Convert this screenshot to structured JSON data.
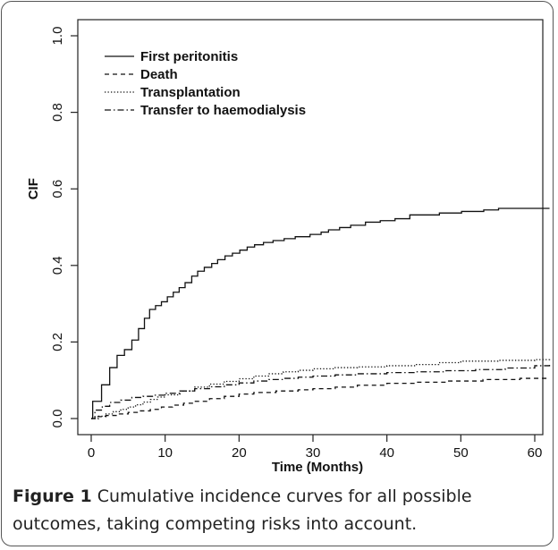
{
  "chart_data": {
    "type": "line",
    "title": "",
    "xlabel": "Time (Months)",
    "ylabel": "CIF",
    "xlim": [
      0,
      62
    ],
    "ylim": [
      0,
      1.0
    ],
    "x_ticks": [
      0,
      10,
      20,
      30,
      40,
      50,
      60
    ],
    "y_ticks": [
      0.0,
      0.2,
      0.4,
      0.6,
      0.8,
      1.0
    ],
    "x_tick_labels": [
      "0",
      "10",
      "20",
      "30",
      "40",
      "50",
      "60"
    ],
    "y_tick_labels": [
      "0.0",
      "0.2",
      "0.4",
      "0.6",
      "0.8",
      "1.0"
    ],
    "grid": false,
    "legend_position": "top-left",
    "series": [
      {
        "name": "First peritonitis",
        "line_style": "solid",
        "step": true,
        "points": [
          [
            0,
            0
          ],
          [
            0.2,
            0.045
          ],
          [
            1.3,
            0.045
          ],
          [
            1.4,
            0.088
          ],
          [
            2.4,
            0.088
          ],
          [
            2.5,
            0.133
          ],
          [
            3.4,
            0.133
          ],
          [
            3.5,
            0.165
          ],
          [
            4.4,
            0.165
          ],
          [
            4.5,
            0.18
          ],
          [
            5.4,
            0.18
          ],
          [
            5.5,
            0.205
          ],
          [
            6.3,
            0.205
          ],
          [
            6.4,
            0.235
          ],
          [
            7.1,
            0.235
          ],
          [
            7.2,
            0.262
          ],
          [
            7.8,
            0.262
          ],
          [
            7.9,
            0.285
          ],
          [
            8.6,
            0.285
          ],
          [
            8.7,
            0.295
          ],
          [
            9.4,
            0.295
          ],
          [
            9.5,
            0.305
          ],
          [
            10.2,
            0.305
          ],
          [
            10.3,
            0.318
          ],
          [
            11,
            0.318
          ],
          [
            11.1,
            0.33
          ],
          [
            11.8,
            0.33
          ],
          [
            11.9,
            0.342
          ],
          [
            12.6,
            0.342
          ],
          [
            12.7,
            0.355
          ],
          [
            13.5,
            0.355
          ],
          [
            13.6,
            0.372
          ],
          [
            14.3,
            0.372
          ],
          [
            14.4,
            0.385
          ],
          [
            15.2,
            0.385
          ],
          [
            15.3,
            0.395
          ],
          [
            16.2,
            0.395
          ],
          [
            16.3,
            0.405
          ],
          [
            17,
            0.405
          ],
          [
            17.1,
            0.415
          ],
          [
            18,
            0.415
          ],
          [
            18.1,
            0.425
          ],
          [
            19,
            0.425
          ],
          [
            19.1,
            0.432
          ],
          [
            20,
            0.432
          ],
          [
            20.1,
            0.44
          ],
          [
            21,
            0.44
          ],
          [
            21.1,
            0.448
          ],
          [
            22,
            0.448
          ],
          [
            22.1,
            0.454
          ],
          [
            23.2,
            0.454
          ],
          [
            23.3,
            0.46
          ],
          [
            24.5,
            0.46
          ],
          [
            24.6,
            0.465
          ],
          [
            26,
            0.465
          ],
          [
            26.1,
            0.47
          ],
          [
            27.5,
            0.47
          ],
          [
            27.6,
            0.475
          ],
          [
            29.5,
            0.475
          ],
          [
            29.6,
            0.481
          ],
          [
            31,
            0.481
          ],
          [
            31.1,
            0.487
          ],
          [
            32,
            0.487
          ],
          [
            32.1,
            0.493
          ],
          [
            33.5,
            0.493
          ],
          [
            33.6,
            0.499
          ],
          [
            35,
            0.499
          ],
          [
            35.1,
            0.505
          ],
          [
            37,
            0.505
          ],
          [
            37.1,
            0.513
          ],
          [
            39,
            0.513
          ],
          [
            39.1,
            0.517
          ],
          [
            41,
            0.517
          ],
          [
            41.1,
            0.522
          ],
          [
            43,
            0.522
          ],
          [
            43.1,
            0.532
          ],
          [
            47,
            0.532
          ],
          [
            47.1,
            0.537
          ],
          [
            50,
            0.537
          ],
          [
            50.1,
            0.541
          ],
          [
            53,
            0.541
          ],
          [
            53.1,
            0.545
          ],
          [
            55,
            0.545
          ],
          [
            55.1,
            0.549
          ],
          [
            62,
            0.549
          ]
        ]
      },
      {
        "name": "Death",
        "line_style": "dashed",
        "step": true,
        "points": [
          [
            0,
            0
          ],
          [
            0.5,
            0.005
          ],
          [
            2,
            0.008
          ],
          [
            3.5,
            0.012
          ],
          [
            5,
            0.016
          ],
          [
            6.5,
            0.02
          ],
          [
            8,
            0.024
          ],
          [
            9.5,
            0.03
          ],
          [
            11,
            0.035
          ],
          [
            12.5,
            0.04
          ],
          [
            14,
            0.045
          ],
          [
            16,
            0.052
          ],
          [
            18,
            0.058
          ],
          [
            20,
            0.064
          ],
          [
            22,
            0.068
          ],
          [
            25,
            0.072
          ],
          [
            28,
            0.075
          ],
          [
            30,
            0.078
          ],
          [
            33,
            0.082
          ],
          [
            36,
            0.087
          ],
          [
            40,
            0.092
          ],
          [
            44,
            0.095
          ],
          [
            48,
            0.098
          ],
          [
            53,
            0.102
          ],
          [
            58,
            0.105
          ],
          [
            62,
            0.105
          ]
        ]
      },
      {
        "name": "Transplantation",
        "line_style": "dotted",
        "step": true,
        "points": [
          [
            0,
            0
          ],
          [
            1,
            0.006
          ],
          [
            2,
            0.012
          ],
          [
            3,
            0.018
          ],
          [
            4,
            0.024
          ],
          [
            5,
            0.03
          ],
          [
            6,
            0.036
          ],
          [
            7,
            0.043
          ],
          [
            8,
            0.05
          ],
          [
            9,
            0.056
          ],
          [
            10,
            0.062
          ],
          [
            12,
            0.072
          ],
          [
            14,
            0.082
          ],
          [
            16,
            0.09
          ],
          [
            18,
            0.097
          ],
          [
            20,
            0.104
          ],
          [
            22,
            0.111
          ],
          [
            24,
            0.117
          ],
          [
            26,
            0.122
          ],
          [
            28,
            0.126
          ],
          [
            30,
            0.13
          ],
          [
            33,
            0.133
          ],
          [
            36,
            0.135
          ],
          [
            40,
            0.138
          ],
          [
            44,
            0.141
          ],
          [
            47,
            0.146
          ],
          [
            50,
            0.15
          ],
          [
            55,
            0.152
          ],
          [
            60,
            0.154
          ],
          [
            62,
            0.156
          ]
        ]
      },
      {
        "name": "Transfer to haemodialysis",
        "line_style": "dash-dot",
        "step": true,
        "points": [
          [
            0,
            0
          ],
          [
            0.5,
            0.022
          ],
          [
            1.5,
            0.032
          ],
          [
            2.5,
            0.042
          ],
          [
            4,
            0.048
          ],
          [
            5.5,
            0.055
          ],
          [
            7,
            0.058
          ],
          [
            8.5,
            0.061
          ],
          [
            10,
            0.066
          ],
          [
            12,
            0.072
          ],
          [
            14,
            0.078
          ],
          [
            16,
            0.083
          ],
          [
            18,
            0.088
          ],
          [
            20,
            0.093
          ],
          [
            22,
            0.098
          ],
          [
            24,
            0.102
          ],
          [
            26,
            0.105
          ],
          [
            28,
            0.108
          ],
          [
            30,
            0.111
          ],
          [
            33,
            0.114
          ],
          [
            36,
            0.117
          ],
          [
            40,
            0.12
          ],
          [
            44,
            0.122
          ],
          [
            48,
            0.125
          ],
          [
            52,
            0.128
          ],
          [
            56,
            0.132
          ],
          [
            60,
            0.138
          ],
          [
            62,
            0.142
          ]
        ]
      }
    ]
  },
  "caption": {
    "label": "Figure 1",
    "text": "Cumulative incidence curves for all possible outcomes, taking competing risks into account."
  }
}
